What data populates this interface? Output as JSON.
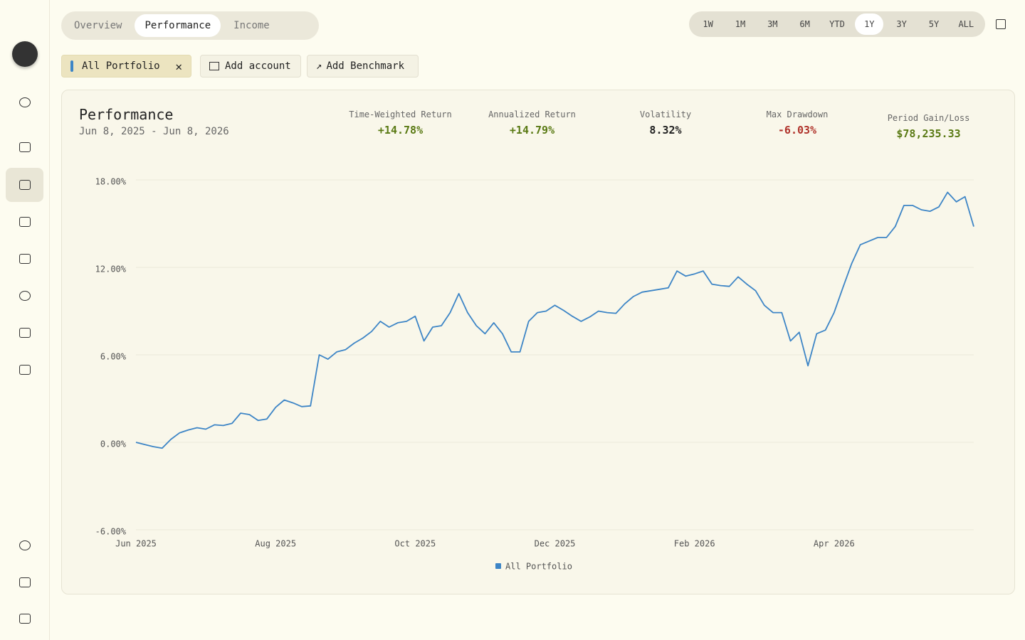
{
  "nav": {
    "tabs": [
      "Overview",
      "Performance",
      "Income"
    ],
    "ranges": [
      "1W",
      "1M",
      "3M",
      "6M",
      "YTD",
      "1Y",
      "3Y",
      "5Y",
      "ALL"
    ],
    "filters": {
      "portfolio": "All Portfolio",
      "add_account": "Add account",
      "add_benchmark": "Add Benchmark"
    }
  },
  "header": {
    "title": "Performance",
    "date_range": "Jun 8, 2025 - Jun 8, 2026"
  },
  "metrics": [
    {
      "label": "Time-Weighted Return",
      "value": "+14.78%"
    },
    {
      "label": "Annualized Return",
      "value": "+14.79%"
    },
    {
      "label": "Volatility",
      "value": "8.32%"
    },
    {
      "label": "Max Drawdown",
      "value": "-6.03%"
    },
    {
      "label": "Period Gain/Loss",
      "value": "$78,235.33"
    }
  ],
  "chart_data": {
    "type": "line",
    "categories": [
      "Jun 2025",
      null,
      null,
      null,
      null,
      null,
      null,
      null,
      null,
      null,
      null,
      null,
      null,
      null,
      null,
      null,
      "Aug 2025",
      null,
      null,
      null,
      null,
      null,
      null,
      null,
      null,
      null,
      null,
      null,
      null,
      null,
      null,
      null,
      "Oct 2025",
      null,
      null,
      null,
      null,
      null,
      null,
      null,
      null,
      null,
      null,
      null,
      null,
      null,
      null,
      null,
      "Dec 2025",
      null,
      null,
      null,
      null,
      null,
      null,
      null,
      null,
      null,
      null,
      null,
      null,
      null,
      null,
      null,
      "Feb 2026",
      null,
      null,
      null,
      null,
      null,
      null,
      null,
      null,
      null,
      null,
      null,
      null,
      null,
      null,
      null,
      "Apr 2026",
      null,
      null,
      null,
      null,
      null,
      null,
      null,
      null,
      null,
      null,
      null,
      null,
      null,
      null,
      null,
      null
    ],
    "series": [
      {
        "name": "All Portfolio",
        "color": "#3d85c6",
        "values": [
          0.0,
          -0.15,
          -0.3,
          -0.4,
          0.2,
          0.65,
          0.85,
          1.0,
          0.9,
          1.2,
          1.15,
          1.3,
          2.0,
          1.9,
          1.5,
          1.6,
          2.4,
          2.9,
          2.7,
          2.45,
          2.5,
          6.0,
          5.7,
          6.2,
          6.35,
          6.8,
          7.15,
          7.6,
          8.3,
          7.9,
          8.2,
          8.3,
          8.65,
          6.95,
          7.9,
          8.0,
          8.9,
          10.2,
          8.9,
          8.0,
          7.45,
          8.2,
          7.45,
          6.2,
          6.2,
          8.3,
          8.9,
          9.0,
          9.4,
          9.05,
          8.65,
          8.3,
          8.6,
          9.0,
          8.9,
          8.85,
          9.5,
          10.0,
          10.3,
          10.4,
          10.5,
          10.6,
          11.75,
          11.4,
          11.55,
          11.75,
          10.85,
          10.75,
          10.7,
          11.35,
          10.85,
          10.4,
          9.4,
          8.9,
          8.9,
          6.95,
          7.55,
          5.25,
          7.45,
          7.7,
          8.9,
          10.6,
          12.25,
          13.55,
          13.8,
          14.05,
          14.05,
          14.8,
          16.25,
          16.25,
          15.95,
          15.85,
          16.15,
          17.15,
          16.5,
          16.85,
          14.8
        ]
      }
    ],
    "ylim": [
      -6,
      18
    ],
    "yticks": [
      {
        "value": -6,
        "label": "-6.00%"
      },
      {
        "value": 0,
        "label": "0.00%"
      },
      {
        "value": 6,
        "label": "6.00%"
      },
      {
        "value": 12,
        "label": "12.00%"
      },
      {
        "value": 18,
        "label": "18.00%"
      }
    ],
    "grid": true,
    "legend": "bottom"
  }
}
